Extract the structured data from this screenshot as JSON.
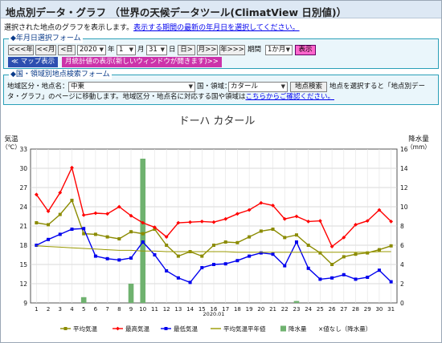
{
  "header": {
    "title": "地点別データ・グラフ （世界の天候データツール(ClimatView 日別値)）"
  },
  "intro": {
    "text_before": "選択された地点のグラフを表示します。",
    "link": "表示する期間の最新の年月日を選択してください。"
  },
  "date_form": {
    "legend": "◆年月日選択フォーム",
    "prev_year": "<<<年",
    "prev_month": "<<月",
    "prev_day": "<日",
    "year_value": "2020",
    "year_unit": "年",
    "month_value": "1",
    "month_unit": "月",
    "day_value": "31",
    "day_unit": "日",
    "next_day": "日>",
    "next_month": "月>>",
    "next_year": "年>>>",
    "period_label": "期間",
    "period_value": "1か月",
    "show_button": "表示",
    "map_button": "≪ マップ表示",
    "monthly_button": "月統計値の表示(新しいウィンドウが開きます)>>"
  },
  "search_form": {
    "legend": "◆国・領域別地点検索フォーム",
    "region_label": "地域区分・地点名：",
    "region_value": "中東",
    "country_label": "国・領域：",
    "country_value": "カタール",
    "search_button": "地点検索",
    "desc1": "地点を選択すると「地点別デー",
    "desc2": "タ・グラフ」のページに移動します。地域区分・地点名に対応する国や領域は",
    "desc_link": "こちらからご確認ください。"
  },
  "chart_data": {
    "type": "line",
    "title": "ドーハ カタール",
    "xlabel": "2020.01",
    "ylabel_left": "気温",
    "ylabel_left_unit": "（℃）",
    "ylabel_right": "降水量",
    "ylabel_right_unit": "（mm）",
    "ylim_left": [
      9,
      33
    ],
    "ylim_right": [
      0,
      16
    ],
    "yticks_left": [
      "9",
      "12",
      "15",
      "18",
      "21",
      "24",
      "27",
      "30",
      "33"
    ],
    "yticks_right": [
      "0",
      "2",
      "4",
      "6",
      "8",
      "10",
      "12",
      "14",
      "16"
    ],
    "x": [
      "1",
      "2",
      "3",
      "4",
      "5",
      "6",
      "7",
      "8",
      "9",
      "10",
      "11",
      "12",
      "13",
      "14",
      "15",
      "16",
      "17",
      "18",
      "19",
      "20",
      "21",
      "22",
      "23",
      "24",
      "25",
      "26",
      "27",
      "28",
      "29",
      "30",
      "31"
    ],
    "grid": true,
    "series": [
      {
        "name": "平均気温",
        "color": "#8b8b00",
        "marker": "square",
        "values": [
          21.5,
          21.2,
          22.8,
          25.0,
          19.8,
          19.7,
          19.3,
          19.0,
          20.1,
          19.8,
          20.5,
          18.0,
          16.3,
          17.0,
          16.3,
          18.0,
          18.5,
          18.4,
          19.3,
          20.2,
          20.5,
          19.2,
          19.6,
          18.0,
          16.8,
          15.0,
          16.2,
          16.6,
          16.8,
          17.3,
          17.9
        ]
      },
      {
        "name": "最高気温",
        "color": "#ff0000",
        "marker": "diamond",
        "values": [
          25.9,
          23.3,
          26.2,
          30.1,
          22.7,
          23.0,
          22.9,
          24.0,
          22.6,
          21.5,
          20.8,
          19.3,
          21.5,
          21.6,
          21.7,
          21.6,
          22.1,
          22.9,
          23.5,
          24.6,
          24.2,
          22.1,
          22.5,
          21.7,
          21.8,
          17.8,
          19.2,
          21.2,
          21.8,
          23.5,
          21.7
        ]
      },
      {
        "name": "最低気温",
        "color": "#0000ee",
        "marker": "square",
        "values": [
          18.0,
          18.9,
          19.7,
          20.5,
          20.6,
          16.3,
          15.9,
          15.7,
          16.0,
          18.5,
          16.5,
          14.0,
          12.9,
          12.2,
          14.5,
          15.0,
          15.1,
          15.6,
          16.3,
          16.8,
          16.6,
          14.8,
          18.5,
          14.4,
          12.7,
          12.9,
          13.4,
          12.7,
          13.0,
          14.1,
          12.3
        ]
      },
      {
        "name": "平均気温平年値",
        "color": "#999900",
        "marker": "none",
        "values": [
          17.9,
          17.8,
          17.7,
          17.6,
          17.5,
          17.4,
          17.3,
          17.2,
          17.2,
          17.1,
          17.1,
          17.0,
          17.0,
          17.0,
          17.0,
          17.0,
          17.0,
          16.9,
          16.9,
          16.9,
          16.9,
          16.9,
          16.9,
          16.9,
          16.9,
          16.9,
          16.9,
          16.9,
          16.9,
          17.0,
          17.0
        ]
      }
    ],
    "bars": {
      "name": "降水量",
      "color": "#6fb26f",
      "values": [
        0,
        0,
        0,
        0,
        0.6,
        0,
        0,
        0,
        2.0,
        15.0,
        0,
        0,
        0,
        0,
        0,
        0,
        0,
        0,
        0,
        0,
        0,
        0,
        0.2,
        0,
        0,
        0,
        0,
        0,
        0,
        0,
        0
      ]
    },
    "legend": [
      "平均気温",
      "最高気温",
      "最低気温",
      "平均気温平年値",
      "降水量",
      "×値なし（降水量）"
    ],
    "legend_position": "bottom"
  }
}
